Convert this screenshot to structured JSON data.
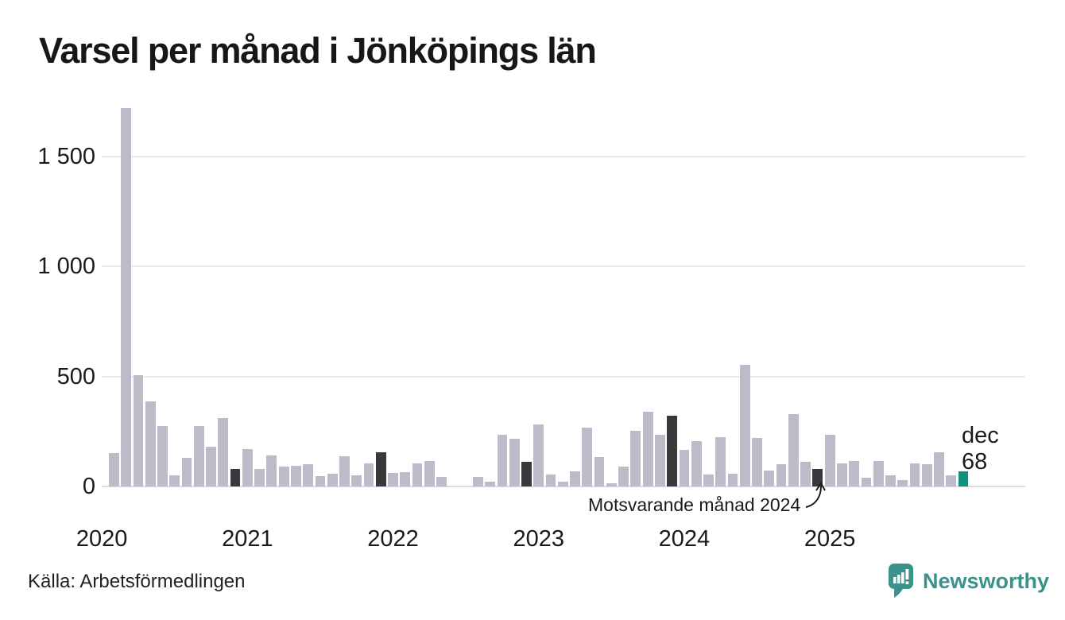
{
  "title": "Varsel per månad i Jönköpings län",
  "source": "Källa: Arbetsförmedlingen",
  "branding": {
    "name": "Newsworthy",
    "icon": "speech-bubble-bar-chart-icon"
  },
  "annotation": {
    "text": "Motsvarande månad 2024",
    "target_month": "2024-12"
  },
  "current_point_label": {
    "month_label": "dec",
    "value_label": "68"
  },
  "colors": {
    "bar": "#bdbac9",
    "bar_highlight_dark": "#3a383d",
    "bar_current": "#119281",
    "gridline": "#eceaf1",
    "axis_line": "#dcdbe3",
    "text": "#1a1a1a",
    "brand_teal": "#3a928b"
  },
  "chart_data": {
    "type": "bar",
    "title": "Varsel per månad i Jönköpings län",
    "xlabel": "",
    "ylabel": "",
    "ylim": [
      0,
      1750
    ],
    "yticks": [
      0,
      500,
      1000,
      1500
    ],
    "ytick_labels": [
      "0",
      "500",
      "1 000",
      "1 500"
    ],
    "x_year_labels": [
      "2020",
      "2021",
      "2022",
      "2023",
      "2024",
      "2025"
    ],
    "grid": "horizontal",
    "legend": "none",
    "months": [
      "2020-02",
      "2020-03",
      "2020-04",
      "2020-05",
      "2020-06",
      "2020-07",
      "2020-08",
      "2020-09",
      "2020-10",
      "2020-11",
      "2020-12",
      "2021-01",
      "2021-02",
      "2021-03",
      "2021-04",
      "2021-05",
      "2021-06",
      "2021-07",
      "2021-08",
      "2021-09",
      "2021-10",
      "2021-11",
      "2021-12",
      "2022-01",
      "2022-02",
      "2022-03",
      "2022-04",
      "2022-05",
      "2022-06",
      "2022-07",
      "2022-08",
      "2022-09",
      "2022-10",
      "2022-11",
      "2022-12",
      "2023-01",
      "2023-02",
      "2023-03",
      "2023-04",
      "2023-05",
      "2023-06",
      "2023-07",
      "2023-08",
      "2023-09",
      "2023-10",
      "2023-11",
      "2023-12",
      "2024-01",
      "2024-02",
      "2024-03",
      "2024-04",
      "2024-05",
      "2024-06",
      "2024-07",
      "2024-08",
      "2024-09",
      "2024-10",
      "2024-11",
      "2024-12",
      "2025-01",
      "2025-02",
      "2025-03",
      "2025-04",
      "2025-05",
      "2025-06",
      "2025-07",
      "2025-08",
      "2025-09",
      "2025-10",
      "2025-11",
      "2025-12"
    ],
    "values": [
      150,
      1720,
      505,
      385,
      275,
      50,
      130,
      275,
      180,
      310,
      80,
      170,
      78,
      140,
      92,
      95,
      100,
      46,
      56,
      138,
      52,
      105,
      155,
      60,
      64,
      104,
      114,
      44,
      0,
      0,
      44,
      22,
      234,
      215,
      113,
      282,
      55,
      20,
      70,
      267,
      132,
      14,
      89,
      253,
      339,
      236,
      320,
      167,
      205,
      54,
      224,
      58,
      551,
      221,
      72,
      102,
      328,
      113,
      78,
      236,
      105,
      116,
      38,
      116,
      49,
      30,
      103,
      101,
      155,
      49,
      68
    ],
    "highlight_dark_months": [
      "2020-12",
      "2021-12",
      "2022-12",
      "2023-12",
      "2024-12"
    ],
    "highlight_current_month": "2025-12"
  }
}
